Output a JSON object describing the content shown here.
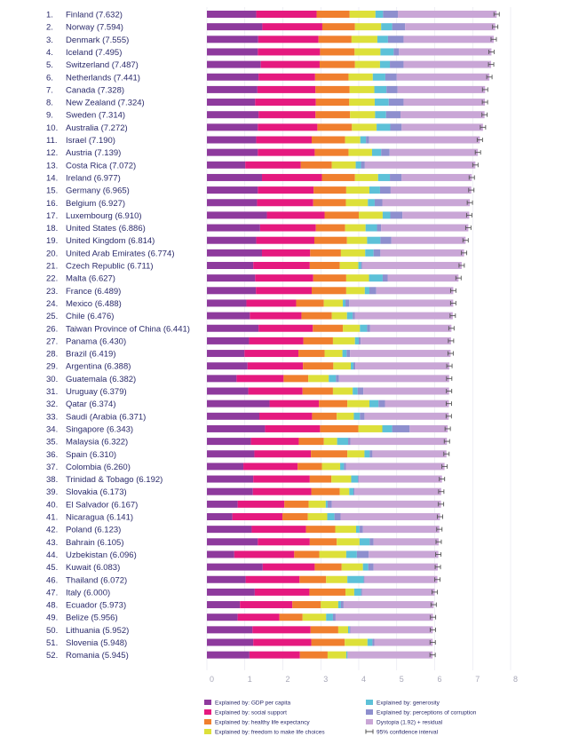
{
  "chart_data": {
    "type": "bar",
    "stacked": true,
    "orientation": "horizontal",
    "xlim": [
      0,
      8
    ],
    "x_ticks": [
      "0",
      "1",
      "2",
      "3",
      "4",
      "5",
      "6",
      "7",
      "8"
    ],
    "grid": true,
    "legend_position": "bottom",
    "colors": {
      "gdp": "#8e3a9d",
      "social": "#e5197f",
      "health": "#f07f2e",
      "freedom": "#dde03a",
      "generosity": "#5dc1d8",
      "corruption": "#8e8fce",
      "dystopia": "#c9a6d6",
      "ci": "#555555"
    },
    "legend": [
      {
        "key": "gdp",
        "label": "Explained by: GDP per capita"
      },
      {
        "key": "social",
        "label": "Explained by: social support"
      },
      {
        "key": "health",
        "label": "Explained by: healthy life expectancy"
      },
      {
        "key": "freedom",
        "label": "Explained by: freedom to make life choices"
      },
      {
        "key": "generosity",
        "label": "Explained by: generosity"
      },
      {
        "key": "corruption",
        "label": "Explained by: perceptions of corruption"
      },
      {
        "key": "dystopia",
        "label": "Dystopia (1.92) + residual"
      },
      {
        "key": "ci",
        "label": "95% confidence interval"
      }
    ],
    "rows": [
      {
        "rank": "1.",
        "label": "Finland (7.632)",
        "score": 7.632,
        "gdp": 1.3,
        "social": 1.59,
        "health": 0.87,
        "freedom": 0.68,
        "generosity": 0.2,
        "corruption": 0.39
      },
      {
        "rank": "2.",
        "label": "Norway (7.594)",
        "score": 7.594,
        "gdp": 1.46,
        "social": 1.58,
        "health": 0.86,
        "freedom": 0.69,
        "generosity": 0.29,
        "corruption": 0.34
      },
      {
        "rank": "3.",
        "label": "Denmark (7.555)",
        "score": 7.555,
        "gdp": 1.35,
        "social": 1.59,
        "health": 0.87,
        "freedom": 0.68,
        "generosity": 0.28,
        "corruption": 0.41
      },
      {
        "rank": "4.",
        "label": "Iceland (7.495)",
        "score": 7.495,
        "gdp": 1.34,
        "social": 1.64,
        "health": 0.91,
        "freedom": 0.68,
        "generosity": 0.35,
        "corruption": 0.14
      },
      {
        "rank": "5.",
        "label": "Switzerland (7.487)",
        "score": 7.487,
        "gdp": 1.42,
        "social": 1.55,
        "health": 0.93,
        "freedom": 0.66,
        "generosity": 0.26,
        "corruption": 0.36
      },
      {
        "rank": "6.",
        "label": "Netherlands (7.441)",
        "score": 7.441,
        "gdp": 1.36,
        "social": 1.49,
        "health": 0.88,
        "freedom": 0.64,
        "generosity": 0.33,
        "corruption": 0.3
      },
      {
        "rank": "7.",
        "label": "Canada (7.328)",
        "score": 7.328,
        "gdp": 1.33,
        "social": 1.53,
        "health": 0.9,
        "freedom": 0.65,
        "generosity": 0.32,
        "corruption": 0.29
      },
      {
        "rank": "8.",
        "label": "New Zealand (7.324)",
        "score": 7.324,
        "gdp": 1.27,
        "social": 1.6,
        "health": 0.88,
        "freedom": 0.67,
        "generosity": 0.37,
        "corruption": 0.39
      },
      {
        "rank": "9.",
        "label": "Sweden (7.314)",
        "score": 7.314,
        "gdp": 1.36,
        "social": 1.5,
        "health": 0.91,
        "freedom": 0.66,
        "generosity": 0.29,
        "corruption": 0.38
      },
      {
        "rank": "10.",
        "label": "Australia (7.272)",
        "score": 7.272,
        "gdp": 1.34,
        "social": 1.57,
        "health": 0.91,
        "freedom": 0.65,
        "generosity": 0.36,
        "corruption": 0.3
      },
      {
        "rank": "11.",
        "label": "Israel (7.190)",
        "score": 7.19,
        "gdp": 1.3,
        "social": 1.46,
        "health": 0.88,
        "freedom": 0.4,
        "generosity": 0.15,
        "corruption": 0.08
      },
      {
        "rank": "12.",
        "label": "Austria (7.139)",
        "score": 7.139,
        "gdp": 1.34,
        "social": 1.5,
        "health": 0.89,
        "freedom": 0.62,
        "generosity": 0.24,
        "corruption": 0.22
      },
      {
        "rank": "13.",
        "label": "Costa Rica (7.072)",
        "score": 7.072,
        "gdp": 1.01,
        "social": 1.46,
        "health": 0.82,
        "freedom": 0.63,
        "generosity": 0.14,
        "corruption": 0.1
      },
      {
        "rank": "14.",
        "label": "Ireland (6.977)",
        "score": 6.977,
        "gdp": 1.45,
        "social": 1.58,
        "health": 0.87,
        "freedom": 0.61,
        "generosity": 0.31,
        "corruption": 0.31
      },
      {
        "rank": "15.",
        "label": "Germany (6.965)",
        "score": 6.965,
        "gdp": 1.34,
        "social": 1.47,
        "health": 0.86,
        "freedom": 0.61,
        "generosity": 0.28,
        "corruption": 0.28
      },
      {
        "rank": "16.",
        "label": "Belgium (6.927)",
        "score": 6.927,
        "gdp": 1.32,
        "social": 1.48,
        "health": 0.86,
        "freedom": 0.58,
        "generosity": 0.18,
        "corruption": 0.2
      },
      {
        "rank": "17.",
        "label": "Luxembourg (6.910)",
        "score": 6.91,
        "gdp": 1.58,
        "social": 1.52,
        "health": 0.9,
        "freedom": 0.63,
        "generosity": 0.2,
        "corruption": 0.32
      },
      {
        "rank": "18.",
        "label": "United States (6.886)",
        "score": 6.886,
        "gdp": 1.4,
        "social": 1.47,
        "health": 0.77,
        "freedom": 0.54,
        "generosity": 0.3,
        "corruption": 0.11
      },
      {
        "rank": "19.",
        "label": "United Kingdom (6.814)",
        "score": 6.814,
        "gdp": 1.3,
        "social": 1.53,
        "health": 0.86,
        "freedom": 0.53,
        "generosity": 0.35,
        "corruption": 0.29
      },
      {
        "rank": "20.",
        "label": "United Arab Emirates (6.774)",
        "score": 6.774,
        "gdp": 1.45,
        "social": 1.27,
        "health": 0.81,
        "freedom": 0.64,
        "generosity": 0.22,
        "corruption": 0.18
      },
      {
        "rank": "21.",
        "label": "Czech Republic (6.711)",
        "score": 6.711,
        "gdp": 1.22,
        "social": 1.49,
        "health": 0.79,
        "freedom": 0.49,
        "generosity": 0.07,
        "corruption": 0.03
      },
      {
        "rank": "22.",
        "label": "Malta (6.627)",
        "score": 6.627,
        "gdp": 1.27,
        "social": 1.53,
        "health": 0.87,
        "freedom": 0.6,
        "generosity": 0.36,
        "corruption": 0.13
      },
      {
        "rank": "23.",
        "label": "France (6.489)",
        "score": 6.489,
        "gdp": 1.29,
        "social": 1.47,
        "health": 0.91,
        "freedom": 0.49,
        "generosity": 0.12,
        "corruption": 0.18
      },
      {
        "rank": "24.",
        "label": "Mexico (6.488)",
        "score": 6.488,
        "gdp": 1.04,
        "social": 1.31,
        "health": 0.73,
        "freedom": 0.5,
        "generosity": 0.07,
        "corruption": 0.1
      },
      {
        "rank": "25.",
        "label": "Chile (6.476)",
        "score": 6.476,
        "gdp": 1.13,
        "social": 1.36,
        "health": 0.8,
        "freedom": 0.4,
        "generosity": 0.15,
        "corruption": 0.06
      },
      {
        "rank": "26.",
        "label": "Taiwan Province of China (6.441)",
        "score": 6.441,
        "gdp": 1.36,
        "social": 1.43,
        "health": 0.79,
        "freedom": 0.45,
        "generosity": 0.19,
        "corruption": 0.08
      },
      {
        "rank": "27.",
        "label": "Panama (6.430)",
        "score": 6.43,
        "gdp": 1.11,
        "social": 1.43,
        "health": 0.78,
        "freedom": 0.58,
        "generosity": 0.1,
        "corruption": 0.05
      },
      {
        "rank": "28.",
        "label": "Brazil (6.419)",
        "score": 6.419,
        "gdp": 0.99,
        "social": 1.42,
        "health": 0.69,
        "freedom": 0.47,
        "generosity": 0.11,
        "corruption": 0.09
      },
      {
        "rank": "29.",
        "label": "Argentina (6.388)",
        "score": 6.388,
        "gdp": 1.07,
        "social": 1.46,
        "health": 0.8,
        "freedom": 0.46,
        "generosity": 0.07,
        "corruption": 0.05
      },
      {
        "rank": "30.",
        "label": "Guatemala (6.382)",
        "score": 6.382,
        "gdp": 0.78,
        "social": 1.24,
        "health": 0.65,
        "freedom": 0.54,
        "generosity": 0.19,
        "corruption": 0.08
      },
      {
        "rank": "31.",
        "label": "Uruguay (6.379)",
        "score": 6.379,
        "gdp": 1.09,
        "social": 1.43,
        "health": 0.8,
        "freedom": 0.52,
        "generosity": 0.13,
        "corruption": 0.15
      },
      {
        "rank": "32.",
        "label": "Qatar (6.374)",
        "score": 6.374,
        "gdp": 1.65,
        "social": 1.3,
        "health": 0.75,
        "freedom": 0.58,
        "generosity": 0.24,
        "corruption": 0.17
      },
      {
        "rank": "33.",
        "label": "Saudi (Arabia (6.371)",
        "score": 6.371,
        "gdp": 1.38,
        "social": 1.39,
        "health": 0.65,
        "freedom": 0.45,
        "generosity": 0.16,
        "corruption": 0.12
      },
      {
        "rank": "34.",
        "label": "Singapore (6.343)",
        "score": 6.343,
        "gdp": 1.53,
        "social": 1.45,
        "health": 1.01,
        "freedom": 0.63,
        "generosity": 0.26,
        "corruption": 0.46
      },
      {
        "rank": "35.",
        "label": "Malaysia (6.322)",
        "score": 6.322,
        "gdp": 1.16,
        "social": 1.26,
        "health": 0.66,
        "freedom": 0.35,
        "generosity": 0.29,
        "corruption": 0.06
      },
      {
        "rank": "36.",
        "label": "Spain (6.310)",
        "score": 6.31,
        "gdp": 1.25,
        "social": 1.49,
        "health": 0.96,
        "freedom": 0.45,
        "generosity": 0.14,
        "corruption": 0.07
      },
      {
        "rank": "37.",
        "label": "Colombia (6.260)",
        "score": 6.26,
        "gdp": 0.96,
        "social": 1.43,
        "health": 0.64,
        "freedom": 0.48,
        "generosity": 0.1,
        "corruption": 0.05
      },
      {
        "rank": "38.",
        "label": "Trinidad & Tobago (6.192)",
        "score": 6.192,
        "gdp": 1.22,
        "social": 1.49,
        "health": 0.57,
        "freedom": 0.52,
        "generosity": 0.18,
        "corruption": 0.02
      },
      {
        "rank": "39.",
        "label": "Slovakia (6.173)",
        "score": 6.173,
        "gdp": 1.21,
        "social": 1.54,
        "health": 0.75,
        "freedom": 0.25,
        "generosity": 0.11,
        "corruption": 0.03
      },
      {
        "rank": "40.",
        "label": "El Salvador (6.167)",
        "score": 6.167,
        "gdp": 0.81,
        "social": 1.23,
        "health": 0.64,
        "freedom": 0.45,
        "generosity": 0.05,
        "corruption": 0.11
      },
      {
        "rank": "41.",
        "label": "Nicaragua (6.141)",
        "score": 6.141,
        "gdp": 0.67,
        "social": 1.32,
        "health": 0.67,
        "freedom": 0.51,
        "generosity": 0.19,
        "corruption": 0.16
      },
      {
        "rank": "42.",
        "label": "Poland (6.123)",
        "score": 6.123,
        "gdp": 1.18,
        "social": 1.43,
        "health": 0.77,
        "freedom": 0.55,
        "generosity": 0.09,
        "corruption": 0.09
      },
      {
        "rank": "43.",
        "label": "Bahrain (6.105)",
        "score": 6.105,
        "gdp": 1.34,
        "social": 1.37,
        "health": 0.71,
        "freedom": 0.6,
        "generosity": 0.27,
        "corruption": 0.1
      },
      {
        "rank": "44.",
        "label": "Uzbekistan (6.096)",
        "score": 6.096,
        "gdp": 0.72,
        "social": 1.58,
        "health": 0.66,
        "freedom": 0.71,
        "generosity": 0.28,
        "corruption": 0.31
      },
      {
        "rank": "45.",
        "label": "Kuwait (6.083)",
        "score": 6.083,
        "gdp": 1.47,
        "social": 1.37,
        "health": 0.71,
        "freedom": 0.56,
        "generosity": 0.14,
        "corruption": 0.14
      },
      {
        "rank": "46.",
        "label": "Thailand (6.072)",
        "score": 6.072,
        "gdp": 1.02,
        "social": 1.42,
        "health": 0.7,
        "freedom": 0.56,
        "generosity": 0.43,
        "corruption": 0.02
      },
      {
        "rank": "47.",
        "label": "Italy (6.000)",
        "score": 6.0,
        "gdp": 1.26,
        "social": 1.44,
        "health": 0.95,
        "freedom": 0.23,
        "generosity": 0.18,
        "corruption": 0.03
      },
      {
        "rank": "48.",
        "label": "Ecuador (5.973)",
        "score": 5.973,
        "gdp": 0.87,
        "social": 1.38,
        "health": 0.75,
        "freedom": 0.46,
        "generosity": 0.07,
        "corruption": 0.07
      },
      {
        "rank": "49.",
        "label": "Belize (5.956)",
        "score": 5.956,
        "gdp": 0.81,
        "social": 1.1,
        "health": 0.61,
        "freedom": 0.62,
        "generosity": 0.18,
        "corruption": 0.07
      },
      {
        "rank": "50.",
        "label": "Lithuania (5.952)",
        "score": 5.952,
        "gdp": 1.2,
        "social": 1.53,
        "health": 0.73,
        "freedom": 0.26,
        "generosity": 0.04,
        "corruption": 0.02
      },
      {
        "rank": "51.",
        "label": "Slovenia (5.948)",
        "score": 5.948,
        "gdp": 1.22,
        "social": 1.53,
        "health": 0.88,
        "freedom": 0.6,
        "generosity": 0.13,
        "corruption": 0.05
      },
      {
        "rank": "52.",
        "label": "Romania (5.945)",
        "score": 5.945,
        "gdp": 1.12,
        "social": 1.33,
        "health": 0.73,
        "freedom": 0.49,
        "generosity": 0.03,
        "corruption": 0.01
      }
    ]
  }
}
